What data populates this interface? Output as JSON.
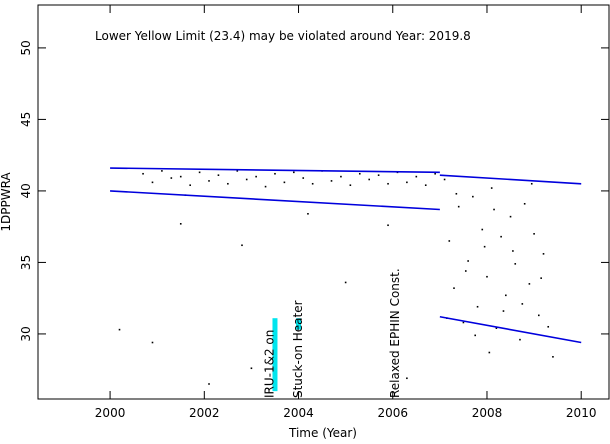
{
  "chart_data": {
    "type": "scatter",
    "title": "Lower Yellow  Limit (23.4) may be violated around Year: 2019.8",
    "x_label": "Time (Year)",
    "y_label": "1DPPWRA",
    "color": "#000000",
    "title_color": "#ff00ff",
    "line_color": "#0000dd",
    "marker_color": "#00e5ee",
    "xlim": [
      1998.47,
      2010.59
    ],
    "ylim": [
      25.45,
      53.0
    ],
    "xticks": [
      2000,
      2002,
      2004,
      2006,
      2008,
      2010
    ],
    "yticks": [
      30,
      35,
      40,
      45,
      50
    ],
    "x": [
      2000.7,
      2000.9,
      2001.1,
      2001.3,
      2001.5,
      2001.7,
      2001.9,
      2002.1,
      2002.3,
      2002.5,
      2002.7,
      2002.9,
      2003.1,
      2003.3,
      2003.5,
      2003.7,
      2003.9,
      2004.1,
      2004.3,
      2004.5,
      2004.7,
      2004.9,
      2005.1,
      2005.3,
      2005.5,
      2005.7,
      2005.9,
      2006.1,
      2006.3,
      2006.5,
      2006.7,
      2006.9,
      2000.2,
      2000.9,
      2001.5,
      2002.8,
      2003.0,
      2004.2,
      2005.0,
      2005.9,
      2006.3,
      2002.1,
      2001.6,
      2007.1,
      2007.2,
      2007.3,
      2007.4,
      2007.5,
      2007.6,
      2007.7,
      2007.8,
      2007.9,
      2008.0,
      2008.1,
      2008.2,
      2008.3,
      2008.4,
      2008.5,
      2008.6,
      2008.7,
      2008.8,
      2008.9,
      2009.0,
      2009.1,
      2009.2,
      2007.15,
      2007.35,
      2007.55,
      2007.75,
      2007.95,
      2008.15,
      2008.35,
      2008.55,
      2008.75,
      2008.95,
      2009.15,
      2008.05,
      2009.3,
      2009.4
    ],
    "values": [
      41.2,
      40.6,
      41.4,
      40.9,
      41.0,
      40.4,
      41.3,
      40.7,
      41.1,
      40.5,
      41.4,
      40.8,
      41.0,
      40.3,
      41.2,
      40.6,
      41.3,
      40.9,
      40.5,
      41.4,
      40.7,
      41.0,
      40.4,
      41.2,
      40.8,
      41.1,
      40.5,
      41.3,
      40.6,
      41.0,
      40.4,
      41.2,
      30.3,
      29.4,
      37.7,
      36.2,
      27.6,
      38.4,
      33.6,
      37.6,
      26.9,
      26.5,
      39.7,
      40.8,
      36.5,
      33.2,
      38.9,
      30.8,
      35.1,
      39.6,
      31.9,
      37.3,
      34.0,
      40.2,
      30.4,
      36.8,
      32.7,
      38.2,
      34.9,
      29.6,
      39.1,
      33.5,
      37.0,
      31.3,
      35.6,
      31.1,
      39.8,
      34.4,
      29.9,
      36.1,
      38.7,
      31.6,
      35.8,
      32.1,
      40.5,
      33.9,
      28.7,
      30.5,
      28.4
    ],
    "lines": [
      {
        "x": [
          2000,
          2007
        ],
        "values": [
          41.6,
          41.3
        ]
      },
      {
        "x": [
          2000,
          2007
        ],
        "values": [
          40.0,
          38.7
        ]
      },
      {
        "x": [
          2007,
          2010
        ],
        "values": [
          41.1,
          40.5
        ]
      },
      {
        "x": [
          2007,
          2010
        ],
        "values": [
          31.2,
          29.4
        ]
      }
    ],
    "annotations": [
      {
        "text": "IRU-1&2 on",
        "x": 2003.39
      },
      {
        "text": "Stuck-on Heater",
        "x": 2004.0
      },
      {
        "text": "Relaxed EPHIN Const.",
        "x": 2006.06
      }
    ],
    "markers": [
      {
        "x": 2003.5,
        "values": [
          31.1,
          26.0
        ]
      },
      {
        "x": 2004.0,
        "values": [
          31.1,
          30.3
        ]
      }
    ]
  }
}
